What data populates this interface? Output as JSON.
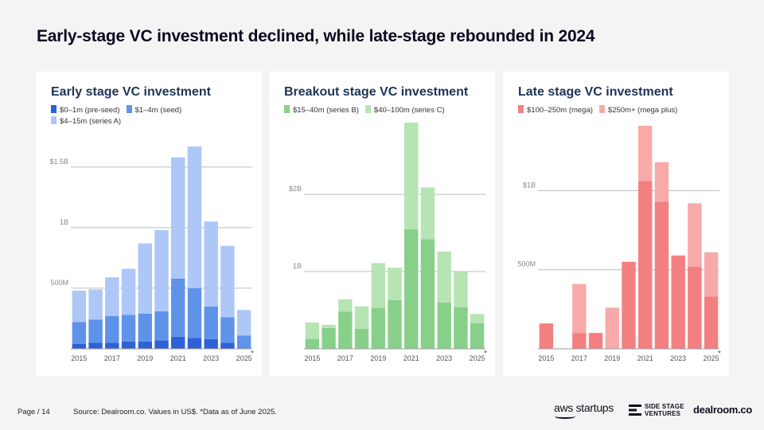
{
  "page": {
    "title": "Early-stage VC investment declined, while late-stage rebounded in 2024",
    "page_label": "Page / 14",
    "source": "Source:  Dealroom.co. Values in US$. *Data as of June 2025.",
    "logos": {
      "aws": "aws startups",
      "ssv_line1": "SIDE STAGE",
      "ssv_line2": "VENTURES",
      "dealroom": "dealroom.co"
    }
  },
  "chart_data": [
    {
      "type": "bar",
      "stacked": true,
      "title": "Early stage VC investment",
      "categories": [
        "2015",
        "2016",
        "2017",
        "2018",
        "2019",
        "2020",
        "2021",
        "2022",
        "2023",
        "2024",
        "2025"
      ],
      "x_tick_labels": [
        "2015",
        "2017",
        "2019",
        "2021",
        "2023",
        "2025"
      ],
      "x_tick_indices": [
        0,
        2,
        4,
        6,
        8,
        10
      ],
      "ylim": [
        0,
        1.88
      ],
      "yticks": [
        0.5,
        1.0,
        1.5
      ],
      "ytick_labels": [
        "500M",
        "1B",
        "$1.5B"
      ],
      "footnote_marker": "*",
      "series": [
        {
          "name": "$0–1m (pre-seed)",
          "color": "#2f61d6",
          "values": [
            0.04,
            0.05,
            0.05,
            0.06,
            0.06,
            0.07,
            0.1,
            0.09,
            0.08,
            0.05,
            0.0
          ]
        },
        {
          "name": "$1–4m (seed)",
          "color": "#5f93ea",
          "values": [
            0.18,
            0.19,
            0.22,
            0.22,
            0.23,
            0.24,
            0.48,
            0.41,
            0.27,
            0.21,
            0.11
          ]
        },
        {
          "name": "$4–15m (series A)",
          "color": "#adc7f7",
          "values": [
            0.26,
            0.25,
            0.32,
            0.38,
            0.58,
            0.67,
            1.0,
            1.17,
            0.7,
            0.59,
            0.21
          ]
        }
      ]
    },
    {
      "type": "bar",
      "stacked": true,
      "title": "Breakout stage VC investment",
      "categories": [
        "2015",
        "2016",
        "2017",
        "2018",
        "2019",
        "2020",
        "2021",
        "2022",
        "2023",
        "2024",
        "2025"
      ],
      "x_tick_labels": [
        "2015",
        "2017",
        "2019",
        "2021",
        "2023",
        "2025"
      ],
      "x_tick_indices": [
        0,
        2,
        4,
        6,
        8,
        10
      ],
      "ylim": [
        0,
        2.95
      ],
      "yticks": [
        1.0,
        2.0
      ],
      "ytick_labels": [
        "1B",
        "$2B"
      ],
      "footnote_marker": "*",
      "series": [
        {
          "name": "$15–40m (series B)",
          "color": "#88d08a",
          "values": [
            0.13,
            0.27,
            0.48,
            0.26,
            0.53,
            0.63,
            1.55,
            1.42,
            0.6,
            0.54,
            0.33
          ]
        },
        {
          "name": "$40–100m (series C)",
          "color": "#b6e4b3",
          "values": [
            0.21,
            0.04,
            0.16,
            0.29,
            0.58,
            0.42,
            1.38,
            0.67,
            0.66,
            0.46,
            0.12
          ]
        }
      ]
    },
    {
      "type": "bar",
      "stacked": true,
      "title": "Late stage VC investment",
      "categories": [
        "2015",
        "2016",
        "2017",
        "2018",
        "2019",
        "2020",
        "2021",
        "2022",
        "2023",
        "2024",
        "2025"
      ],
      "x_tick_labels": [
        "2015",
        "2017",
        "2019",
        "2021",
        "2023",
        "2025"
      ],
      "x_tick_indices": [
        0,
        2,
        4,
        6,
        8,
        10
      ],
      "ylim": [
        0,
        1.44
      ],
      "yticks": [
        0.5,
        1.0
      ],
      "ytick_labels": [
        "500M",
        "$1B"
      ],
      "footnote_marker": "*",
      "series": [
        {
          "name": "$100–250m (mega)",
          "color": "#f47f80",
          "values": [
            0.16,
            0.0,
            0.1,
            0.1,
            0.0,
            0.55,
            1.06,
            0.93,
            0.59,
            0.52,
            0.33
          ]
        },
        {
          "name": "$250m+ (mega plus)",
          "color": "#f8aaa9",
          "values": [
            0.0,
            0.0,
            0.31,
            0.0,
            0.26,
            0.0,
            0.35,
            0.25,
            0.0,
            0.4,
            0.28
          ]
        }
      ]
    }
  ]
}
